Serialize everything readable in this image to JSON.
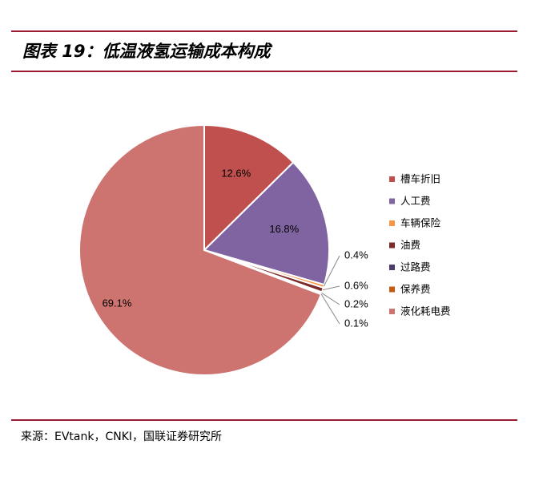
{
  "header": {
    "title": "图表 19：低温液氢运输成本构成"
  },
  "footer": {
    "source": "来源：EVtank，CNKI，国联证券研究所"
  },
  "chart_data": {
    "type": "pie",
    "slices": [
      {
        "name": "槽车折旧",
        "value": 12.6,
        "label": "12.6%",
        "color": "#c0504d"
      },
      {
        "name": "人工费",
        "value": 16.8,
        "label": "16.8%",
        "color": "#8064a2"
      },
      {
        "name": "车辆保险",
        "value": 0.4,
        "label": "0.4%",
        "color": "#f79646"
      },
      {
        "name": "油费",
        "value": 0.6,
        "label": "0.6%",
        "color": "#7b2c2a"
      },
      {
        "name": "过路费",
        "value": 0.2,
        "label": "0.2%",
        "color": "#4e3b6e"
      },
      {
        "name": "保养费",
        "value": 0.1,
        "label": "0.1%",
        "color": "#c55a11"
      },
      {
        "name": "液化耗电费",
        "value": 69.1,
        "label": "69.1%",
        "color": "#cd7370"
      }
    ],
    "legend_position": "right"
  }
}
